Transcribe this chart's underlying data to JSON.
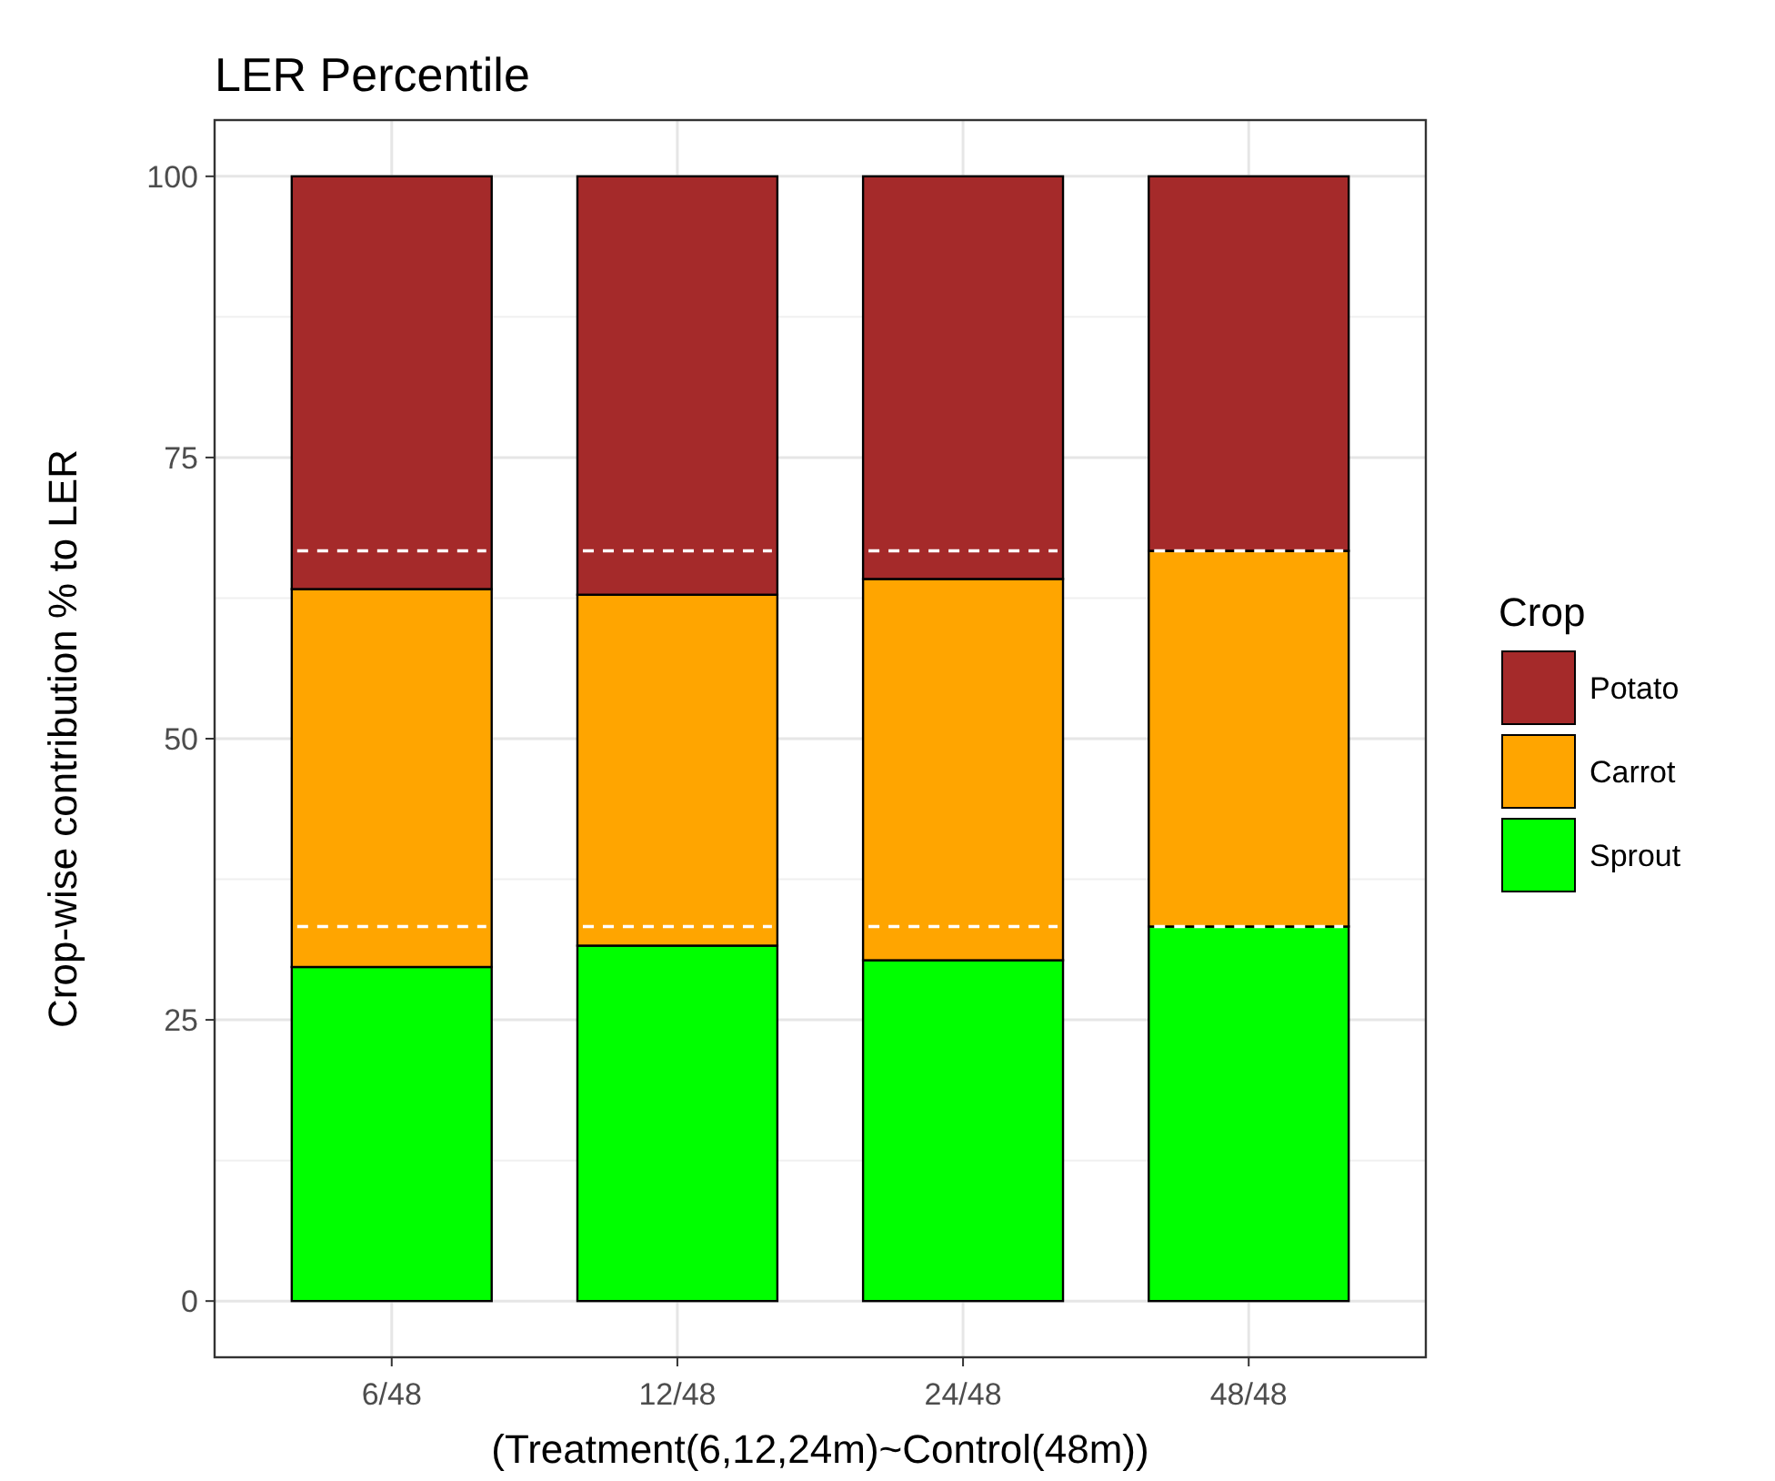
{
  "chart_data": {
    "type": "bar",
    "title": "LER Percentile",
    "xlabel": "(Treatment(6,12,24m)~Control(48m))",
    "ylabel": "Crop-wise contribution % to LER",
    "legend_title": "Crop",
    "categories": [
      "6/48",
      "12/48",
      "24/48",
      "48/48"
    ],
    "series": [
      {
        "name": "Sprout",
        "color": "#00ff00",
        "values": [
          29.7,
          31.6,
          30.3,
          33.3
        ]
      },
      {
        "name": "Carrot",
        "color": "#ffa500",
        "values": [
          33.6,
          31.2,
          33.9,
          33.4
        ]
      },
      {
        "name": "Potato",
        "color": "#a52a2a",
        "values": [
          36.7,
          37.2,
          35.8,
          33.3
        ]
      }
    ],
    "stacked": true,
    "ylim": [
      -5,
      105
    ],
    "yticks": [
      0,
      25,
      50,
      75,
      100
    ],
    "grid": true,
    "legend": "right",
    "ref_lines": [
      {
        "axis": "y",
        "value": 33.3,
        "color": "#ffffff",
        "line_style": "dashed"
      },
      {
        "axis": "y",
        "value": 66.7,
        "color": "#ffffff",
        "line_style": "dashed"
      }
    ]
  }
}
